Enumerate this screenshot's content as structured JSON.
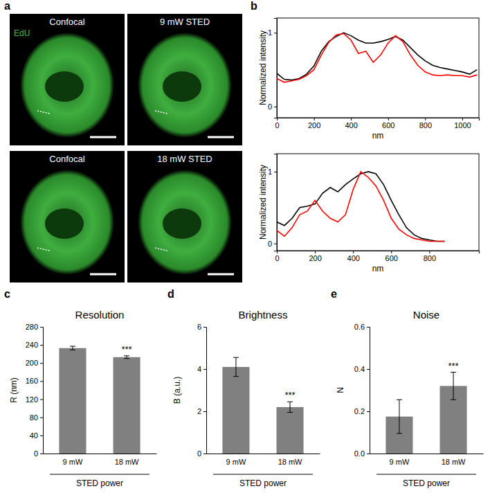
{
  "panel_labels": [
    "a",
    "b",
    "c",
    "d",
    "e"
  ],
  "images": {
    "channel_label": "EdU",
    "labels": [
      "Confocal",
      "9 mW STED",
      "Confocal",
      "18 mW STED"
    ]
  },
  "chart_data": [
    {
      "type": "line",
      "x_label": "nm",
      "y_label": "Normalized intensity",
      "x": [
        0,
        40,
        80,
        120,
        160,
        200,
        240,
        280,
        320,
        360,
        400,
        440,
        480,
        520,
        560,
        600,
        640,
        680,
        720,
        760,
        800,
        840,
        880,
        920,
        960,
        1000,
        1040,
        1080
      ],
      "xlim": [
        0,
        1090
      ],
      "xticks": [
        0,
        200,
        400,
        600,
        800,
        1000
      ],
      "ylim": [
        -0.15,
        1.2
      ],
      "yticks": [
        0,
        1
      ],
      "series": [
        {
          "color": "#000000",
          "values": [
            0.45,
            0.37,
            0.36,
            0.38,
            0.44,
            0.55,
            0.75,
            0.88,
            0.95,
            1.0,
            0.96,
            0.9,
            0.86,
            0.86,
            0.88,
            0.91,
            0.95,
            0.9,
            0.8,
            0.7,
            0.62,
            0.56,
            0.53,
            0.51,
            0.49,
            0.47,
            0.44,
            0.5
          ]
        },
        {
          "color": "#ff0000",
          "values": [
            0.38,
            0.33,
            0.35,
            0.37,
            0.42,
            0.5,
            0.7,
            0.87,
            0.97,
            0.99,
            0.9,
            0.72,
            0.75,
            0.6,
            0.7,
            0.86,
            0.96,
            0.88,
            0.7,
            0.56,
            0.47,
            0.43,
            0.42,
            0.43,
            0.42,
            0.42,
            0.4,
            0.43
          ]
        }
      ]
    },
    {
      "type": "line",
      "x_label": "nm",
      "y_label": "Normalized intensity",
      "x": [
        0,
        40,
        80,
        120,
        160,
        200,
        240,
        280,
        320,
        360,
        400,
        440,
        480,
        520,
        560,
        600,
        640,
        680,
        720,
        760,
        800,
        840,
        880
      ],
      "xlim": [
        0,
        1060
      ],
      "xticks": [
        0,
        200,
        400,
        600,
        800
      ],
      "ylim": [
        -0.1,
        1.25
      ],
      "yticks": [
        0,
        1
      ],
      "series": [
        {
          "color": "#000000",
          "values": [
            0.3,
            0.25,
            0.35,
            0.5,
            0.52,
            0.55,
            0.7,
            0.78,
            0.72,
            0.82,
            0.9,
            0.97,
            1.0,
            0.97,
            0.82,
            0.6,
            0.4,
            0.22,
            0.12,
            0.07,
            0.05,
            0.03,
            0.03
          ]
        },
        {
          "color": "#ff0000",
          "values": [
            0.18,
            0.1,
            0.22,
            0.4,
            0.45,
            0.6,
            0.45,
            0.35,
            0.3,
            0.4,
            0.75,
            1.0,
            0.92,
            0.8,
            0.6,
            0.35,
            0.2,
            0.12,
            0.07,
            0.05,
            0.03,
            0.03,
            0.03
          ]
        }
      ]
    },
    {
      "type": "bar",
      "title": "Resolution",
      "y_label": "R (nm)",
      "x_label": "STED power",
      "categories": [
        "9 mW",
        "18 mW"
      ],
      "values": [
        233,
        213
      ],
      "errors": [
        4,
        3
      ],
      "color": "#808080",
      "ylim": [
        0,
        280
      ],
      "yticks": [
        0,
        40,
        80,
        120,
        160,
        200,
        240,
        280
      ],
      "annotations": [
        {
          "text": "***",
          "category": "18 mW"
        }
      ]
    },
    {
      "type": "bar",
      "title": "Brightness",
      "y_label": "B (a.u.)",
      "x_label": "STED power",
      "categories": [
        "9 mW",
        "18 mW"
      ],
      "values": [
        4.1,
        2.2
      ],
      "errors": [
        0.45,
        0.25
      ],
      "color": "#808080",
      "ylim": [
        0,
        6
      ],
      "yticks": [
        0,
        2,
        4,
        6
      ],
      "annotations": [
        {
          "text": "***",
          "category": "18 mW"
        }
      ]
    },
    {
      "type": "bar",
      "title": "Noise",
      "y_label": "N",
      "x_label": "STED power",
      "categories": [
        "9 mW",
        "18 mW"
      ],
      "values": [
        0.175,
        0.32
      ],
      "errors": [
        0.08,
        0.065
      ],
      "color": "#808080",
      "ylim": [
        0,
        0.6
      ],
      "yticks": [
        {
          "value": 0,
          "label": "0.0"
        },
        0.2,
        0.4,
        0.6
      ],
      "annotations": [
        {
          "text": "***",
          "category": "18 mW"
        }
      ]
    }
  ]
}
